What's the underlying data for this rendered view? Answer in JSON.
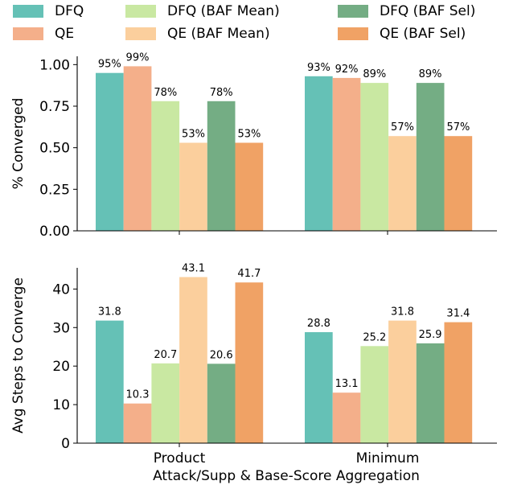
{
  "legend": [
    {
      "label": "DFQ",
      "color": "#65c1b6"
    },
    {
      "label": "DFQ (BAF Mean)",
      "color": "#c9e8a2"
    },
    {
      "label": "DFQ (BAF Sel)",
      "color": "#74ad84"
    },
    {
      "label": "QE",
      "color": "#f4af8a"
    },
    {
      "label": "QE (BAF Mean)",
      "color": "#fbcf9d"
    },
    {
      "label": "QE (BAF Sel)",
      "color": "#f0a265"
    }
  ],
  "xlabel": "Attack/Supp & Base-Score Aggregation",
  "chart_data": [
    {
      "type": "bar",
      "categories": [
        "Product",
        "Minimum"
      ],
      "ylabel": "% Converged",
      "ylim": [
        0,
        1.05
      ],
      "yticks": [
        "0.00",
        "0.25",
        "0.50",
        "0.75",
        "1.00"
      ],
      "grid": false,
      "series": [
        {
          "name": "DFQ",
          "values": [
            0.95,
            0.93
          ],
          "labels": [
            "95%",
            "93%"
          ]
        },
        {
          "name": "QE",
          "values": [
            0.99,
            0.92
          ],
          "labels": [
            "99%",
            "92%"
          ]
        },
        {
          "name": "DFQ (BAF Mean)",
          "values": [
            0.78,
            0.89
          ],
          "labels": [
            "78%",
            "89%"
          ]
        },
        {
          "name": "QE (BAF Mean)",
          "values": [
            0.53,
            0.57
          ],
          "labels": [
            "53%",
            "57%"
          ]
        },
        {
          "name": "DFQ (BAF Sel)",
          "values": [
            0.78,
            0.89
          ],
          "labels": [
            "78%",
            "89%"
          ]
        },
        {
          "name": "QE (BAF Sel)",
          "values": [
            0.53,
            0.57
          ],
          "labels": [
            "53%",
            "57%"
          ]
        }
      ]
    },
    {
      "type": "bar",
      "categories": [
        "Product",
        "Minimum"
      ],
      "ylabel": "Avg Steps to Converge",
      "ylim": [
        0,
        45.5
      ],
      "yticks": [
        "0",
        "10",
        "20",
        "30",
        "40"
      ],
      "grid": false,
      "series": [
        {
          "name": "DFQ",
          "values": [
            31.8,
            28.8
          ],
          "labels": [
            "31.8",
            "28.8"
          ]
        },
        {
          "name": "QE",
          "values": [
            10.3,
            13.1
          ],
          "labels": [
            "10.3",
            "13.1"
          ]
        },
        {
          "name": "DFQ (BAF Mean)",
          "values": [
            20.7,
            25.2
          ],
          "labels": [
            "20.7",
            "25.2"
          ]
        },
        {
          "name": "QE (BAF Mean)",
          "values": [
            43.1,
            31.8
          ],
          "labels": [
            "43.1",
            "31.8"
          ]
        },
        {
          "name": "DFQ (BAF Sel)",
          "values": [
            20.6,
            25.9
          ],
          "labels": [
            "20.6",
            "25.9"
          ]
        },
        {
          "name": "QE (BAF Sel)",
          "values": [
            41.7,
            31.4
          ],
          "labels": [
            "41.7",
            "31.4"
          ]
        }
      ]
    }
  ]
}
